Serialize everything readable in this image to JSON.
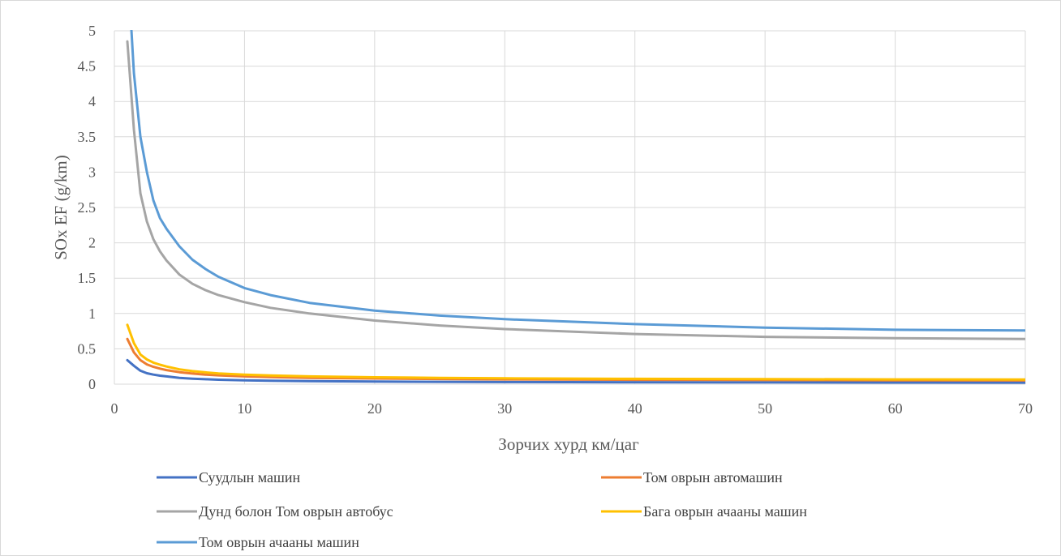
{
  "chart_data": {
    "type": "line",
    "xlabel": "Зорчих хурд км/цаг",
    "ylabel": "SOx EF (g/km)",
    "xlim": [
      0,
      70
    ],
    "ylim": [
      0,
      5
    ],
    "xticks": [
      "0",
      "10",
      "20",
      "30",
      "40",
      "50",
      "60",
      "70"
    ],
    "yticks": [
      "0",
      "0.5",
      "1",
      "1.5",
      "2",
      "2.5",
      "3",
      "3.5",
      "4",
      "4.5",
      "5"
    ],
    "grid": true,
    "legend_position": "bottom",
    "x": [
      1,
      1.5,
      2,
      2.5,
      3,
      3.5,
      4,
      5,
      6,
      7,
      8,
      10,
      12,
      15,
      20,
      25,
      30,
      40,
      50,
      60,
      70
    ],
    "series": [
      {
        "name": "Суудлын машин",
        "color": "#4472C4",
        "values": [
          0.34,
          0.26,
          0.19,
          0.155,
          0.135,
          0.12,
          0.11,
          0.09,
          0.078,
          0.07,
          0.063,
          0.055,
          0.049,
          0.043,
          0.037,
          0.033,
          0.03,
          0.027,
          0.025,
          0.023,
          0.022
        ]
      },
      {
        "name": "Том оврын автомашин",
        "color": "#ED7D31",
        "values": [
          0.64,
          0.45,
          0.34,
          0.28,
          0.245,
          0.22,
          0.2,
          0.17,
          0.15,
          0.135,
          0.125,
          0.11,
          0.1,
          0.09,
          0.08,
          0.073,
          0.068,
          0.062,
          0.058,
          0.055,
          0.053
        ]
      },
      {
        "name": "Дунд болон Том оврын автобус",
        "color": "#A5A5A5",
        "values": [
          4.85,
          3.6,
          2.7,
          2.3,
          2.05,
          1.88,
          1.75,
          1.55,
          1.42,
          1.33,
          1.26,
          1.16,
          1.08,
          1.0,
          0.9,
          0.83,
          0.78,
          0.71,
          0.67,
          0.65,
          0.64
        ]
      },
      {
        "name": "Бага оврын ачааны машин",
        "color": "#FFC000",
        "values": [
          0.84,
          0.58,
          0.42,
          0.35,
          0.305,
          0.275,
          0.25,
          0.21,
          0.185,
          0.167,
          0.153,
          0.135,
          0.123,
          0.11,
          0.097,
          0.089,
          0.083,
          0.076,
          0.071,
          0.068,
          0.066
        ]
      },
      {
        "name": "Том оврын ачааны машин",
        "color": "#5B9BD5",
        "values": [
          6.0,
          4.4,
          3.5,
          3.0,
          2.6,
          2.35,
          2.2,
          1.95,
          1.76,
          1.63,
          1.52,
          1.36,
          1.26,
          1.15,
          1.04,
          0.97,
          0.92,
          0.85,
          0.8,
          0.77,
          0.76
        ]
      }
    ]
  }
}
